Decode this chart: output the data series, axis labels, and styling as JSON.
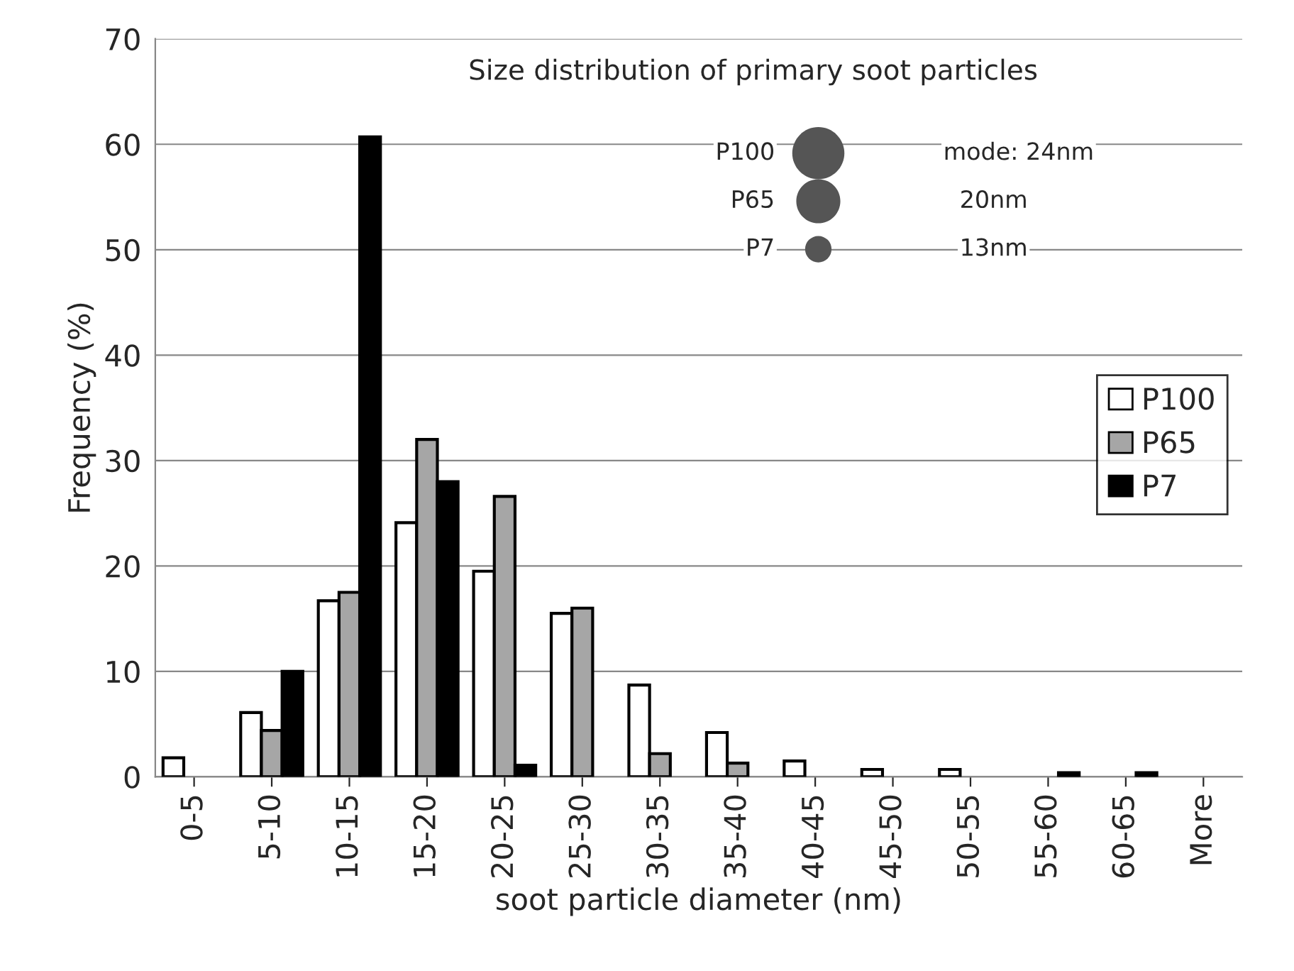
{
  "chart_data": {
    "type": "bar",
    "title": "Size distribution of primary soot particles",
    "xlabel": "soot particle diameter (nm)",
    "ylabel": "Frequency (%)",
    "categories": [
      "0-5",
      "5-10",
      "10-15",
      "15-20",
      "20-25",
      "25-30",
      "30-35",
      "35-40",
      "40-45",
      "45-50",
      "50-55",
      "55-60",
      "60-65",
      "More"
    ],
    "series": [
      {
        "name": "P100",
        "color": "#ffffff",
        "values": [
          1.8,
          6.1,
          16.7,
          24.1,
          19.5,
          15.5,
          8.7,
          4.2,
          1.5,
          0.7,
          0.7,
          null,
          null,
          null
        ]
      },
      {
        "name": "P65",
        "color": "#a6a6a6",
        "values": [
          null,
          4.4,
          17.5,
          32,
          26.6,
          16,
          2.2,
          1.3,
          null,
          null,
          null,
          null,
          null,
          null
        ]
      },
      {
        "name": "P7",
        "color": "#000000",
        "values": [
          null,
          10,
          60.7,
          28,
          1.1,
          null,
          null,
          null,
          null,
          null,
          null,
          0.4,
          0.4,
          null
        ]
      }
    ],
    "ylim": [
      0,
      70
    ],
    "yticks": [
      0,
      10,
      20,
      30,
      40,
      50,
      60,
      70
    ],
    "grid": "y",
    "legend": "right",
    "annotations": [
      "P100",
      "P65",
      "P7",
      "mode: 24nm",
      "20nm",
      "13nm"
    ]
  }
}
